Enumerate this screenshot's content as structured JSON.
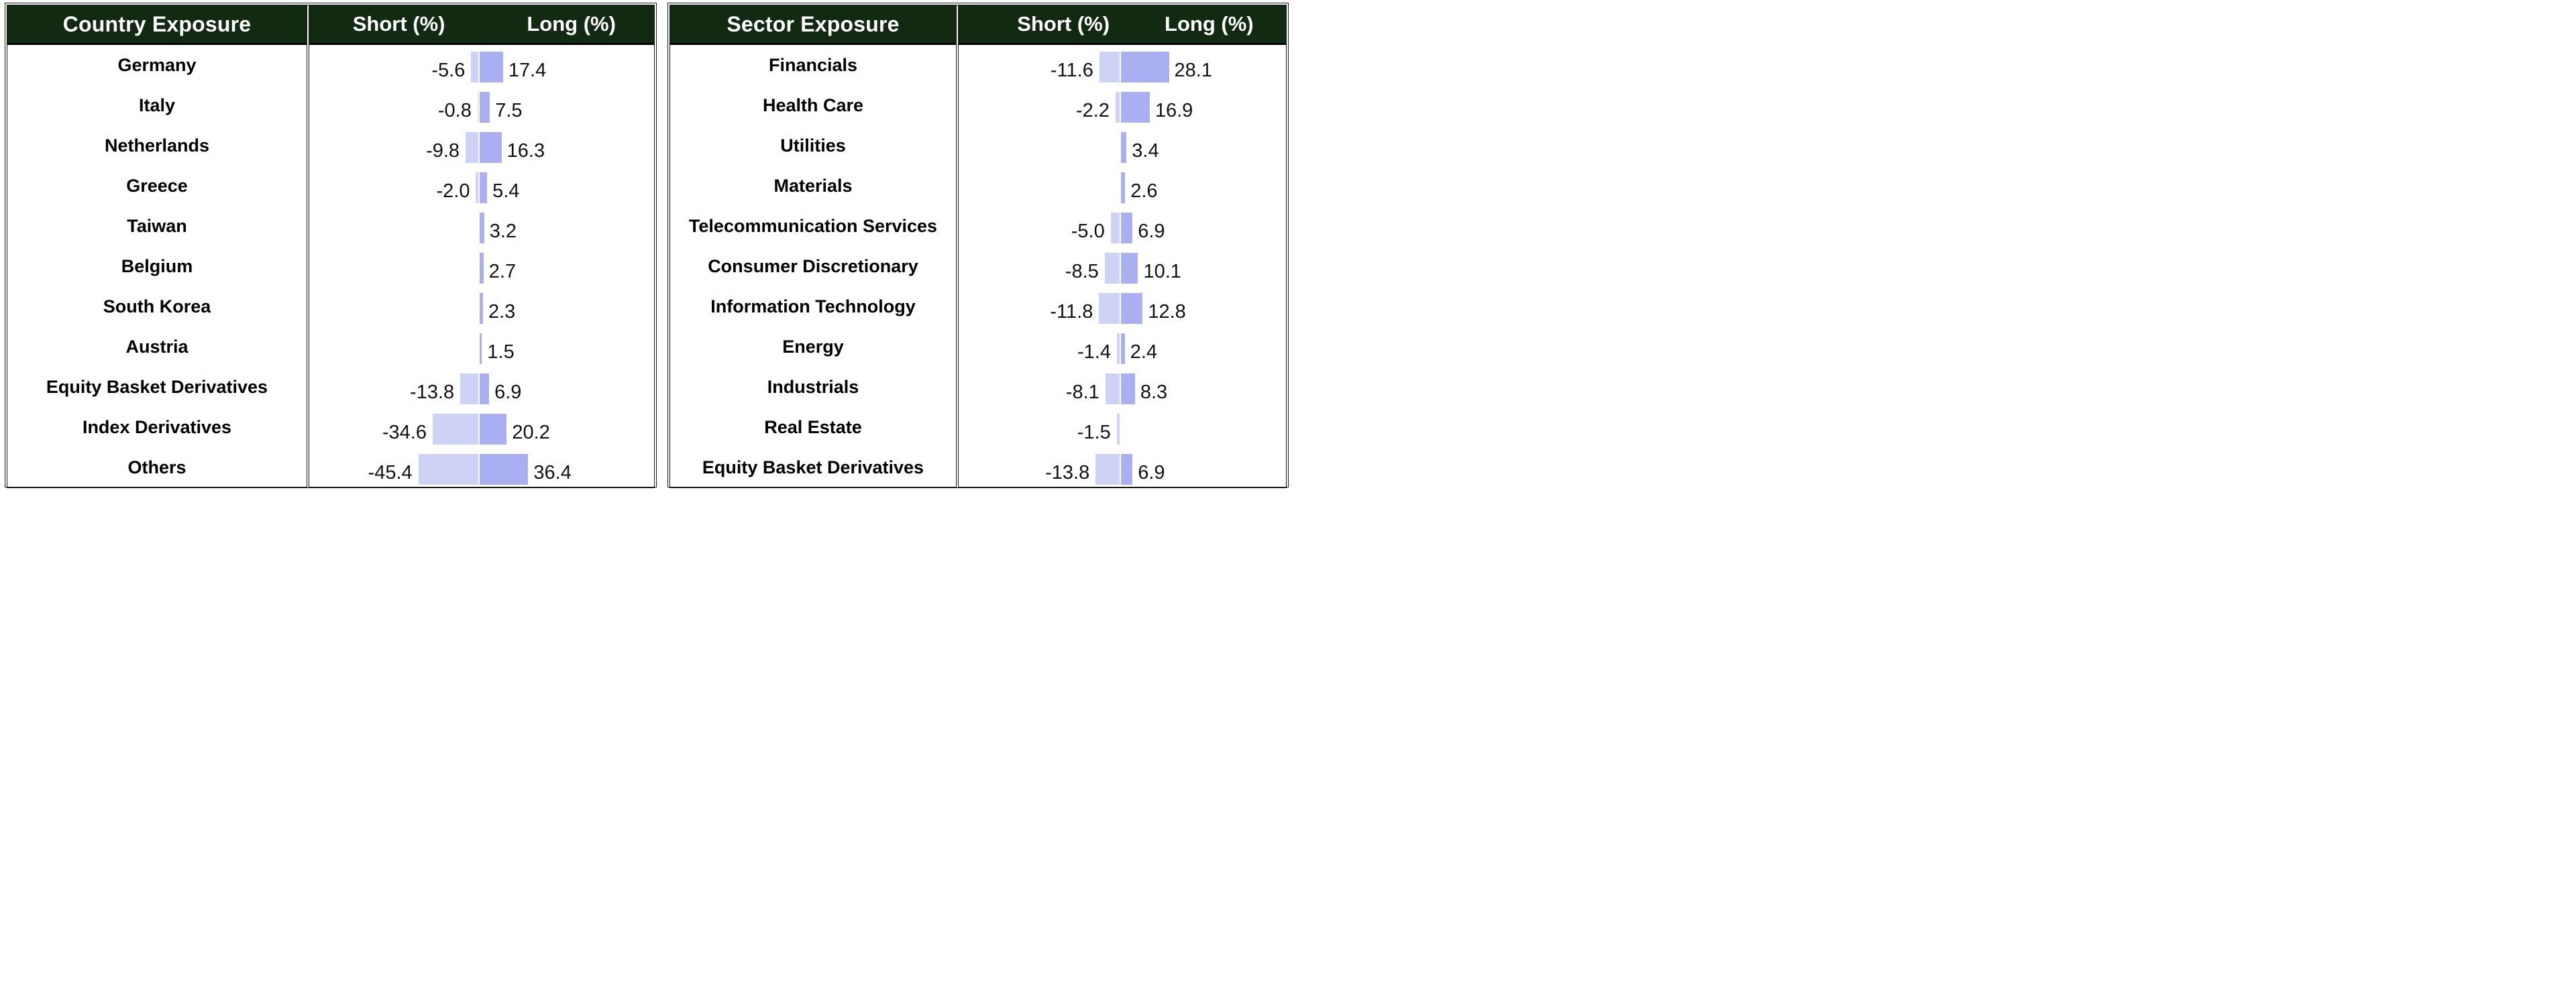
{
  "colors": {
    "header_bg": "#122a11",
    "header_text": "#ffffff",
    "short_bar": "#ced3f5",
    "long_bar": "#a9aff0",
    "border": "#161616",
    "value_text": "#111111"
  },
  "tables": [
    {
      "title": "Country Exposure",
      "columns": {
        "short": "Short (%)",
        "long": "Long (%)"
      },
      "rows": [
        {
          "label": "Germany",
          "short": -5.6,
          "long": 17.4,
          "short_text": "-5.6",
          "long_text": "17.4"
        },
        {
          "label": "Italy",
          "short": -0.8,
          "long": 7.5,
          "short_text": "-0.8",
          "long_text": "7.5"
        },
        {
          "label": "Netherlands",
          "short": -9.8,
          "long": 16.3,
          "short_text": "-9.8",
          "long_text": "16.3"
        },
        {
          "label": "Greece",
          "short": -2.0,
          "long": 5.4,
          "short_text": "-2.0",
          "long_text": "5.4"
        },
        {
          "label": "Taiwan",
          "short": null,
          "long": 3.2,
          "short_text": null,
          "long_text": "3.2"
        },
        {
          "label": "Belgium",
          "short": null,
          "long": 2.7,
          "short_text": null,
          "long_text": "2.7"
        },
        {
          "label": "South Korea",
          "short": null,
          "long": 2.3,
          "short_text": null,
          "long_text": "2.3"
        },
        {
          "label": "Austria",
          "short": null,
          "long": 1.5,
          "short_text": null,
          "long_text": "1.5"
        },
        {
          "label": "Equity Basket Derivatives",
          "short": -13.8,
          "long": 6.9,
          "short_text": "-13.8",
          "long_text": "6.9"
        },
        {
          "label": "Index Derivatives",
          "short": -34.6,
          "long": 20.2,
          "short_text": "-34.6",
          "long_text": "20.2"
        },
        {
          "label": "Others",
          "short": -45.4,
          "long": 36.4,
          "short_text": "-45.4",
          "long_text": "36.4"
        }
      ]
    },
    {
      "title": "Sector Exposure",
      "columns": {
        "short": "Short (%)",
        "long": "Long (%)"
      },
      "rows": [
        {
          "label": "Financials",
          "short": -11.6,
          "long": 28.1,
          "short_text": "-11.6",
          "long_text": "28.1"
        },
        {
          "label": "Health Care",
          "short": -2.2,
          "long": 16.9,
          "short_text": "-2.2",
          "long_text": "16.9"
        },
        {
          "label": "Utilities",
          "short": null,
          "long": 3.4,
          "short_text": null,
          "long_text": "3.4"
        },
        {
          "label": "Materials",
          "short": null,
          "long": 2.6,
          "short_text": null,
          "long_text": "2.6"
        },
        {
          "label": "Telecommunication Services",
          "short": -5.0,
          "long": 6.9,
          "short_text": "-5.0",
          "long_text": "6.9"
        },
        {
          "label": "Consumer Discretionary",
          "short": -8.5,
          "long": 10.1,
          "short_text": "-8.5",
          "long_text": "10.1"
        },
        {
          "label": "Information Technology",
          "short": -11.8,
          "long": 12.8,
          "short_text": "-11.8",
          "long_text": "12.8"
        },
        {
          "label": "Energy",
          "short": -1.4,
          "long": 2.4,
          "short_text": "-1.4",
          "long_text": "2.4"
        },
        {
          "label": "Industrials",
          "short": -8.1,
          "long": 8.3,
          "short_text": "-8.1",
          "long_text": "8.3"
        },
        {
          "label": "Real Estate",
          "short": -1.5,
          "long": null,
          "short_text": "-1.5",
          "long_text": null
        },
        {
          "label": "Equity Basket Derivatives",
          "short": -13.8,
          "long": 6.9,
          "short_text": "-13.8",
          "long_text": "6.9"
        }
      ]
    }
  ],
  "chart_data": [
    {
      "type": "bar",
      "orientation": "horizontal",
      "title": "Country Exposure",
      "categories": [
        "Germany",
        "Italy",
        "Netherlands",
        "Greece",
        "Taiwan",
        "Belgium",
        "South Korea",
        "Austria",
        "Equity Basket Derivatives",
        "Index Derivatives",
        "Others"
      ],
      "series": [
        {
          "name": "Short (%)",
          "values": [
            -5.6,
            -0.8,
            -9.8,
            -2.0,
            null,
            null,
            null,
            null,
            -13.8,
            -34.6,
            -45.4
          ]
        },
        {
          "name": "Long (%)",
          "values": [
            17.4,
            7.5,
            16.3,
            5.4,
            3.2,
            2.7,
            2.3,
            1.5,
            6.9,
            20.2,
            36.4
          ]
        }
      ],
      "xlim": [
        -50,
        40
      ],
      "value_labels": true,
      "legend_position": "header"
    },
    {
      "type": "bar",
      "orientation": "horizontal",
      "title": "Sector Exposure",
      "categories": [
        "Financials",
        "Health Care",
        "Utilities",
        "Materials",
        "Telecommunication Services",
        "Consumer Discretionary",
        "Information Technology",
        "Energy",
        "Industrials",
        "Real Estate",
        "Equity Basket Derivatives"
      ],
      "series": [
        {
          "name": "Short (%)",
          "values": [
            -11.6,
            -2.2,
            null,
            null,
            -5.0,
            -8.5,
            -11.8,
            -1.4,
            -8.1,
            -1.5,
            -13.8
          ]
        },
        {
          "name": "Long (%)",
          "values": [
            28.1,
            16.9,
            3.4,
            2.6,
            6.9,
            10.1,
            12.8,
            2.4,
            8.3,
            null,
            6.9
          ]
        }
      ],
      "xlim": [
        -20,
        30
      ],
      "value_labels": true,
      "legend_position": "header"
    }
  ]
}
